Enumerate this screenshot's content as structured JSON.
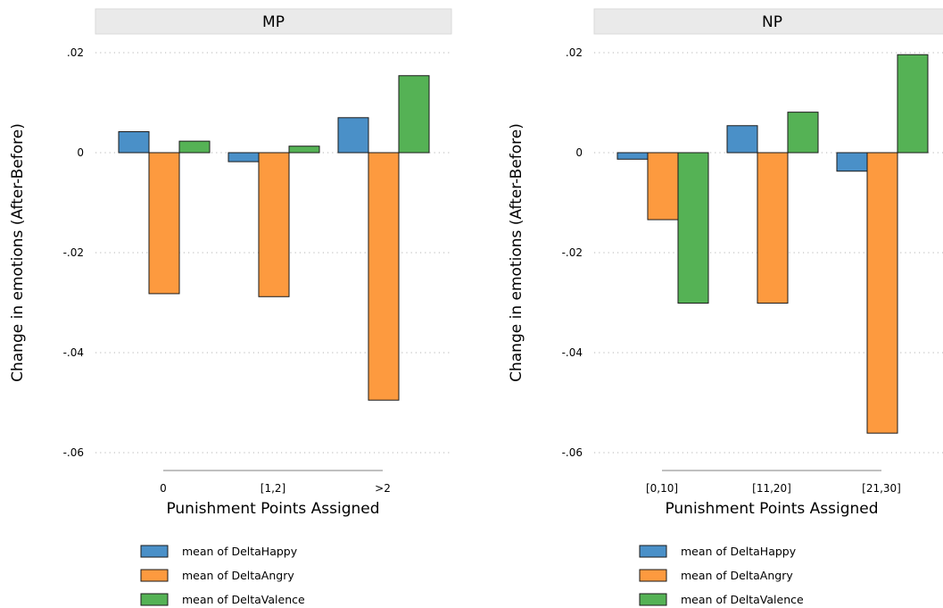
{
  "chart_data": [
    {
      "type": "bar",
      "title": "MP",
      "categories": [
        "0",
        "[1,2]",
        ">2"
      ],
      "xlabel": "Punishment Points Assigned",
      "ylabel": "Change in emotions (After-Before)",
      "ylim": [
        -0.06,
        0.02
      ],
      "yticks": [
        ".02",
        "0",
        "-.02",
        "-.04",
        "-.06"
      ],
      "grid": true,
      "legend": "bottom",
      "series": [
        {
          "name": "mean of DeltaHappy",
          "color": "#4a90c8",
          "values": [
            0.0042,
            -0.0018,
            0.007
          ]
        },
        {
          "name": "mean of DeltaAngry",
          "color": "#fd9a3f",
          "values": [
            -0.0282,
            -0.0288,
            -0.0495
          ]
        },
        {
          "name": "mean of DeltaValence",
          "color": "#55b255",
          "values": [
            0.0023,
            0.0013,
            0.0154
          ]
        }
      ]
    },
    {
      "type": "bar",
      "title": "NP",
      "categories": [
        "[0,10]",
        "[11,20]",
        "[21,30]"
      ],
      "xlabel": "Punishment Points Assigned",
      "ylabel": "Change in emotions (After-Before)",
      "ylim": [
        -0.06,
        0.02
      ],
      "yticks": [
        ".02",
        "0",
        "-.02",
        "-.04",
        "-.06"
      ],
      "grid": true,
      "legend": "bottom",
      "series": [
        {
          "name": "mean of DeltaHappy",
          "color": "#4a90c8",
          "values": [
            -0.0013,
            0.0054,
            -0.0037
          ]
        },
        {
          "name": "mean of DeltaAngry",
          "color": "#fd9a3f",
          "values": [
            -0.0134,
            -0.0301,
            -0.0561
          ]
        },
        {
          "name": "mean of DeltaValence",
          "color": "#55b255",
          "values": [
            -0.0301,
            0.0081,
            0.0196
          ]
        }
      ]
    }
  ]
}
